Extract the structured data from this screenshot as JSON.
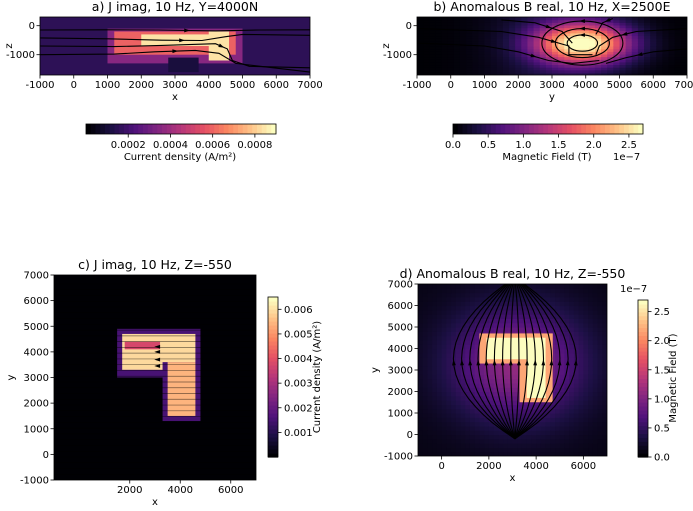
{
  "palette": {
    "cmap": [
      "#000004",
      "#1c1044",
      "#4f127b",
      "#812581",
      "#b5367a",
      "#e55064",
      "#fb8761",
      "#fec287",
      "#fcfdbf"
    ],
    "stream": "#000000"
  },
  "chart_data": [
    {
      "id": "a",
      "type": "heatmap",
      "title": "a) J imag, 10 Hz, Y=4000N",
      "xlabel": "x",
      "ylabel": "z",
      "xlim": [
        -1000,
        7000
      ],
      "ylim": [
        -1700,
        300
      ],
      "xticks": [
        "-1000",
        "0",
        "1000",
        "2000",
        "3000",
        "4000",
        "5000",
        "6000",
        "7000"
      ],
      "yticks": [
        "0",
        "-1000"
      ],
      "colorbar": {
        "label": "Current density (A/m²)",
        "ticks": [
          "0.0002",
          "0.0004",
          "0.0006",
          "0.0008"
        ],
        "range": [
          0,
          0.0009
        ]
      },
      "field_blocks": [
        {
          "x": [
            -1000,
            7000
          ],
          "z": [
            -1700,
            300
          ],
          "v": 0.00015
        },
        {
          "x": [
            1000,
            5000
          ],
          "z": [
            -1300,
            -100
          ],
          "v": 0.00035
        },
        {
          "x": [
            1200,
            4800
          ],
          "z": [
            -1000,
            -200
          ],
          "v": 0.0006
        },
        {
          "x": [
            2000,
            4500
          ],
          "z": [
            -700,
            -300
          ],
          "v": 0.00085
        },
        {
          "x": [
            4000,
            4600
          ],
          "z": [
            -1200,
            -200
          ],
          "v": 0.00085
        },
        {
          "x": [
            2800,
            3700
          ],
          "z": [
            -1600,
            -1100
          ],
          "v": 0.0001
        }
      ],
      "streamlines": [
        [
          [
            -1000,
            -150
          ],
          [
            1000,
            -140
          ],
          [
            2500,
            -150
          ],
          [
            4200,
            -180
          ],
          [
            5500,
            -150
          ],
          [
            7000,
            -140
          ]
        ],
        [
          [
            -1000,
            -420
          ],
          [
            1000,
            -450
          ],
          [
            2600,
            -500
          ],
          [
            3800,
            -510
          ],
          [
            4500,
            -380
          ],
          [
            5000,
            -300
          ],
          [
            7000,
            -330
          ]
        ],
        [
          [
            -1000,
            -700
          ],
          [
            1200,
            -720
          ],
          [
            2600,
            -680
          ],
          [
            4200,
            -620
          ],
          [
            4550,
            -800
          ],
          [
            4700,
            -1200
          ],
          [
            5200,
            -1400
          ],
          [
            7000,
            -1450
          ]
        ],
        [
          [
            -1000,
            -1000
          ],
          [
            1200,
            -980
          ],
          [
            2400,
            -900
          ],
          [
            3600,
            -850
          ],
          [
            4300,
            -950
          ],
          [
            4800,
            -1300
          ],
          [
            7000,
            -1600
          ]
        ]
      ]
    },
    {
      "id": "b",
      "type": "heatmap",
      "title": "b)  Anomalous B real, 10 Hz, X=2500E",
      "xlabel": "y",
      "ylabel": "z",
      "xlim": [
        -1000,
        7000
      ],
      "ylim": [
        -1700,
        300
      ],
      "xticks": [
        "-1000",
        "0",
        "1000",
        "2000",
        "3000",
        "4000",
        "5000",
        "6000",
        "7000"
      ],
      "yticks": [
        "0",
        "-1000"
      ],
      "colorbar": {
        "label": "Magnetic Field (T)",
        "ticks": [
          "0.0",
          "0.5",
          "1.0",
          "1.5",
          "2.0",
          "2.5"
        ],
        "range": [
          0,
          2.7
        ],
        "exponent": "1e−7"
      },
      "field_center": [
        3900,
        -600
      ],
      "streamlines": [
        [
          [
            -1000,
            -100
          ],
          [
            1500,
            -200
          ],
          [
            2600,
            -400
          ],
          [
            3500,
            -700
          ],
          [
            3500,
            -1000
          ],
          [
            4200,
            -1000
          ]
        ],
        [
          [
            -1000,
            -600
          ],
          [
            1000,
            -700
          ],
          [
            2000,
            -900
          ],
          [
            2900,
            -1200
          ],
          [
            3600,
            -1300
          ],
          [
            4400,
            -1200
          ]
        ],
        [
          [
            1500,
            200
          ],
          [
            2500,
            100
          ],
          [
            3300,
            -200
          ],
          [
            3600,
            -600
          ]
        ],
        [
          [
            7000,
            -100
          ],
          [
            5500,
            -200
          ],
          [
            4800,
            -400
          ],
          [
            4400,
            -700
          ],
          [
            4300,
            -1000
          ]
        ],
        [
          [
            7000,
            -800
          ],
          [
            6000,
            -900
          ],
          [
            5200,
            -1100
          ],
          [
            4600,
            -1300
          ]
        ],
        [
          [
            4800,
            250
          ],
          [
            4500,
            100
          ],
          [
            4300,
            -300
          ]
        ]
      ],
      "loops": [
        {
          "cx": 3900,
          "cy": -600,
          "rx": 450,
          "ry": 280
        },
        {
          "cx": 3900,
          "cy": -600,
          "rx": 800,
          "ry": 500
        },
        {
          "cx": 3900,
          "cy": -600,
          "rx": 1200,
          "ry": 760
        }
      ]
    },
    {
      "id": "c",
      "type": "heatmap",
      "title": "c) J imag, 10 Hz, Z=-550",
      "xlabel": "x",
      "ylabel": "y",
      "xlim": [
        -1000,
        7000
      ],
      "ylim": [
        -1000,
        7000
      ],
      "xticks": [
        "2000",
        "4000",
        "6000"
      ],
      "yticks": [
        "-1000",
        "0",
        "1000",
        "2000",
        "3000",
        "4000",
        "5000",
        "6000",
        "7000"
      ],
      "colorbar": {
        "label": "Current density (A/m²)",
        "ticks": [
          "0.001",
          "0.002",
          "0.003",
          "0.004",
          "0.005",
          "0.006"
        ],
        "range": [
          0,
          0.0065
        ]
      },
      "field_blocks": [
        {
          "x": [
            -1000,
            7000
          ],
          "y": [
            -1000,
            7000
          ],
          "v": 0.0
        },
        {
          "x": [
            1500,
            4800
          ],
          "y": [
            3000,
            4900
          ],
          "v": 0.0015
        },
        {
          "x": [
            1700,
            4600
          ],
          "y": [
            3300,
            4700
          ],
          "v": 0.006
        },
        {
          "x": [
            3300,
            4800
          ],
          "y": [
            1300,
            3600
          ],
          "v": 0.0015
        },
        {
          "x": [
            3500,
            4600
          ],
          "y": [
            1500,
            3600
          ],
          "v": 0.0055
        },
        {
          "x": [
            1800,
            3200
          ],
          "y": [
            4100,
            4400
          ],
          "v": 0.0038
        }
      ],
      "hlines_step": 225
    },
    {
      "id": "d",
      "type": "heatmap",
      "title": "d)  Anomalous B real, 10 Hz, Z=-550",
      "xlabel": "x",
      "ylabel": "y",
      "xlim": [
        -1000,
        7000
      ],
      "ylim": [
        -1000,
        7000
      ],
      "xticks": [
        "0",
        "2000",
        "4000",
        "6000"
      ],
      "yticks": [
        "-1000",
        "0",
        "1000",
        "2000",
        "3000",
        "4000",
        "5000",
        "6000",
        "7000"
      ],
      "colorbar": {
        "label": "Magnetic Field (T)",
        "ticks": [
          "0.0",
          "0.5",
          "1.0",
          "1.5",
          "2.0",
          "2.5"
        ],
        "range": [
          0,
          2.7
        ],
        "exponent": "1e−7"
      },
      "field_blocks": [
        {
          "x": [
            1600,
            4700
          ],
          "y": [
            3300,
            4700
          ],
          "v": 2.2
        },
        {
          "x": [
            3300,
            4700
          ],
          "y": [
            1500,
            4700
          ],
          "v": 2.2
        },
        {
          "x": [
            1900,
            4300
          ],
          "y": [
            3500,
            4500
          ],
          "v": 2.7
        },
        {
          "x": [
            3600,
            4400
          ],
          "y": [
            1700,
            4500
          ],
          "v": 2.7
        },
        {
          "x": [
            3800,
            4200
          ],
          "y": [
            2000,
            3000
          ],
          "v": 2.7
        }
      ],
      "source": [
        3100,
        -200
      ],
      "sink": [
        3100,
        7300
      ]
    }
  ]
}
